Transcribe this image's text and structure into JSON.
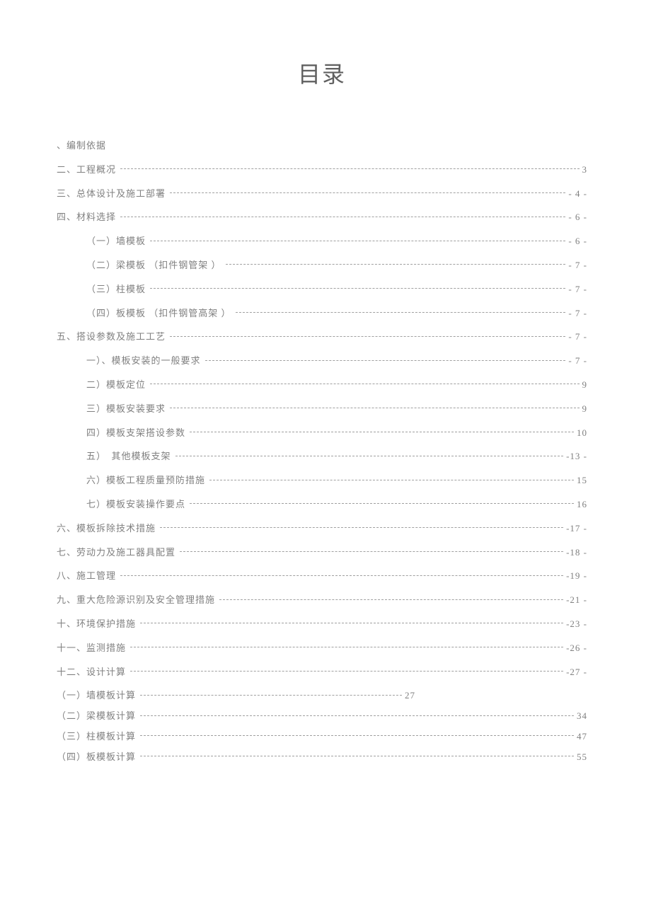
{
  "title": "目录",
  "entries": [
    {
      "level": 1,
      "label": "、编制依据",
      "page": "",
      "leader": false
    },
    {
      "level": 1,
      "label": "二、工程概况",
      "page": " 3",
      "leader": true
    },
    {
      "level": 1,
      "label": "三、总体设计及施工部署",
      "page": "- 4 -",
      "leader": true
    },
    {
      "level": 1,
      "label": "四、材料选择",
      "page": "- 6 -",
      "leader": true
    },
    {
      "level": 2,
      "label": "（一）墙模板",
      "page": "- 6 -",
      "leader": true
    },
    {
      "level": 2,
      "label": "（二）梁模板 （扣件钢管架 ）",
      "page": "- 7 -",
      "leader": true
    },
    {
      "level": 2,
      "label": "（三）柱模板",
      "page": "- 7 -",
      "leader": true
    },
    {
      "level": 2,
      "label": "（四）板模板 （扣件钢管高架 ）",
      "page": "- 7 -",
      "leader": true
    },
    {
      "level": 1,
      "label": "五、搭设参数及施工工艺",
      "page": "- 7 -",
      "leader": true
    },
    {
      "level": 2,
      "label": "一）、模板安装的一般要求",
      "page": "- 7 -",
      "leader": true
    },
    {
      "level": 2,
      "label": "二）模板定位",
      "page": " 9",
      "leader": true
    },
    {
      "level": 2,
      "label": "三）模板安装要求",
      "page": " 9",
      "leader": true
    },
    {
      "level": 2,
      "label": "四）模板支架搭设参数",
      "page": "10",
      "leader": true
    },
    {
      "level": 2,
      "label": "五）　其他模板支架",
      "page": " -13 -",
      "leader": true
    },
    {
      "level": 2,
      "label": "六）模板工程质量预防措施",
      "page": "15",
      "leader": true
    },
    {
      "level": 2,
      "label": "七）模板安装操作要点",
      "page": "16",
      "leader": true
    },
    {
      "level": 1,
      "label": "六、模板拆除技术措施",
      "page": " -17 -",
      "leader": true
    },
    {
      "level": 1,
      "label": "七、劳动力及施工器具配置",
      "page": " -18 -",
      "leader": true
    },
    {
      "level": 1,
      "label": "八、施工管理",
      "page": " -19 -",
      "leader": true
    },
    {
      "level": 1,
      "label": "九、重大危险源识别及安全管理措施",
      "page": " -21 -",
      "leader": true
    },
    {
      "level": 1,
      "label": "十、环境保护措施",
      "page": " -23 -",
      "leader": true
    },
    {
      "level": 1,
      "label": "十一、监测措施",
      "page": " -26 -",
      "leader": true
    },
    {
      "level": 1,
      "label": "十二、设计计算",
      "page": " -27 -",
      "leader": true
    }
  ],
  "tight_entries": [
    {
      "level": 1,
      "label": "（一）墙模板计算",
      "page": " 27",
      "leader": true,
      "short": true
    },
    {
      "level": 1,
      "label": "（二）梁模板计算",
      "page": "34",
      "leader": true
    },
    {
      "level": 1,
      "label": "（三）柱模板计算",
      "page": "47",
      "leader": true
    },
    {
      "level": 1,
      "label": "（四）板模板计算",
      "page": "55",
      "leader": true
    }
  ],
  "colors": {
    "background": "#ffffff",
    "text": "#808080",
    "title": "#606060",
    "leader": "#a0a0a0"
  },
  "typography": {
    "title_fontsize": 32,
    "entry_fontsize": 13,
    "font_family": "SimSun"
  }
}
